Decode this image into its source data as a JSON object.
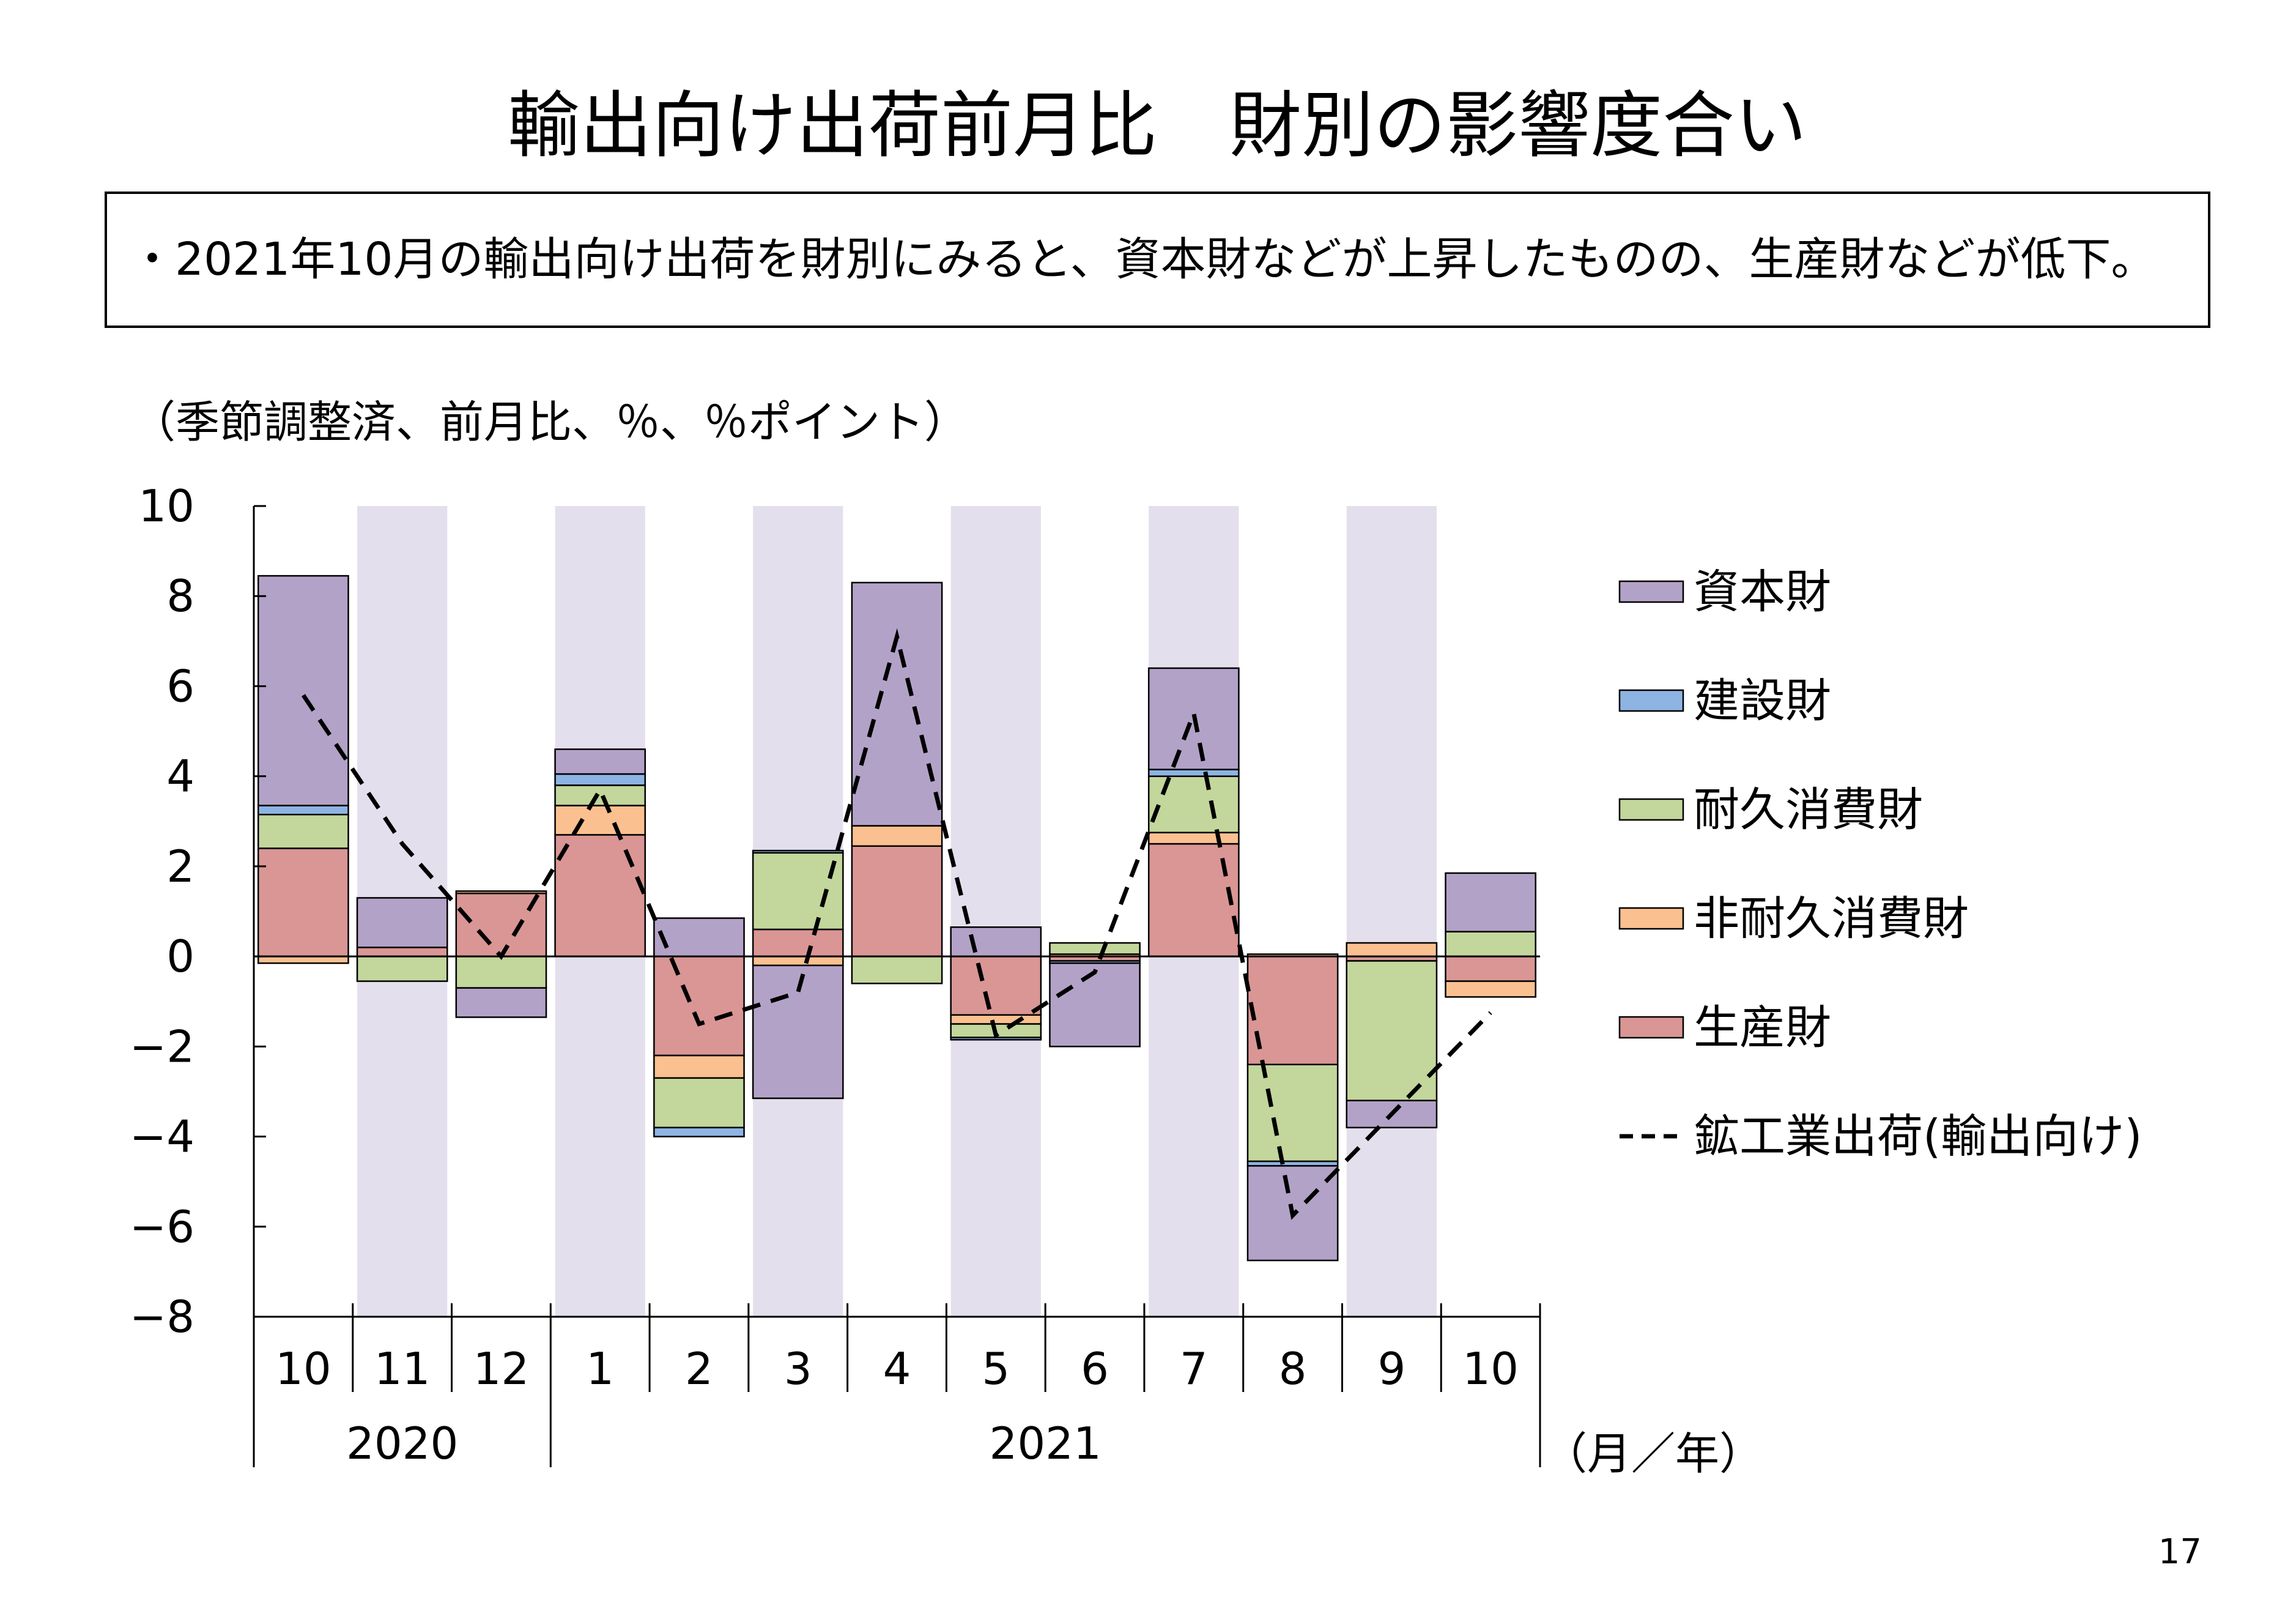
{
  "slide": {
    "summary": "・2021年10月の輸出向け出荷を財別にみると、資本財などが上昇したものの、生産財などが低下。",
    "page_number": "17"
  },
  "chart_data": {
    "type": "bar",
    "stacked": true,
    "title": "輸出向け出荷前月比　財別の影響度合い",
    "ylabel": "（季節調整済、前月比、％、％ポイント）",
    "xlabel": "（月／年）",
    "categories": [
      "10",
      "11",
      "12",
      "1",
      "2",
      "3",
      "4",
      "5",
      "6",
      "7",
      "8",
      "9",
      "10"
    ],
    "category_years": [
      "2020",
      "2020",
      "2020",
      "2021",
      "2021",
      "2021",
      "2021",
      "2021",
      "2021",
      "2021",
      "2021",
      "2021",
      "2021"
    ],
    "ylim": [
      -8,
      10
    ],
    "yticks": [
      "10",
      "8",
      "6",
      "4",
      "2",
      "0",
      "−2",
      "−4",
      "−6",
      "−8"
    ],
    "grid": false,
    "legend": "right",
    "alternate_column_shading": true,
    "shading_color": "#E4DFEC",
    "series": [
      {
        "name": "資本財",
        "type": "bar",
        "color": "#B3A2C7",
        "values": [
          5.1,
          1.1,
          -0.65,
          0.55,
          0.85,
          -2.95,
          5.4,
          0.65,
          -1.85,
          2.25,
          -2.1,
          -0.6,
          1.3
        ]
      },
      {
        "name": "建設財",
        "type": "bar",
        "color": "#8EB4E3",
        "values": [
          0.2,
          0,
          0,
          0.25,
          -0.2,
          0.05,
          0,
          -0.05,
          -0.05,
          0.15,
          -0.1,
          0,
          0
        ]
      },
      {
        "name": "耐久消費財",
        "type": "bar",
        "color": "#C3D69B",
        "values": [
          0.75,
          -0.55,
          -0.7,
          0.45,
          -1.1,
          1.7,
          -0.6,
          -0.3,
          0.25,
          1.25,
          -2.15,
          -3.1,
          0.55
        ]
      },
      {
        "name": "非耐久消費財",
        "type": "bar",
        "color": "#FAC090",
        "values": [
          -0.15,
          0,
          0.05,
          0.65,
          -0.5,
          -0.2,
          0.45,
          -0.2,
          0.05,
          0.25,
          0.05,
          0.3,
          -0.35
        ]
      },
      {
        "name": "生産財",
        "type": "bar",
        "color": "#D99694",
        "values": [
          2.4,
          0.2,
          1.4,
          2.7,
          -2.2,
          0.6,
          2.45,
          -1.3,
          -0.1,
          2.5,
          -2.4,
          -0.1,
          -0.55
        ]
      },
      {
        "name": "鉱工業出荷(輸出向け)",
        "type": "line",
        "color": "#000000",
        "line_style": "dashed",
        "values": [
          5.8,
          2.5,
          0.0,
          3.7,
          -1.5,
          -0.8,
          7.1,
          -1.75,
          -0.35,
          5.4,
          -5.75,
          -3.5,
          -1.25
        ]
      }
    ]
  }
}
